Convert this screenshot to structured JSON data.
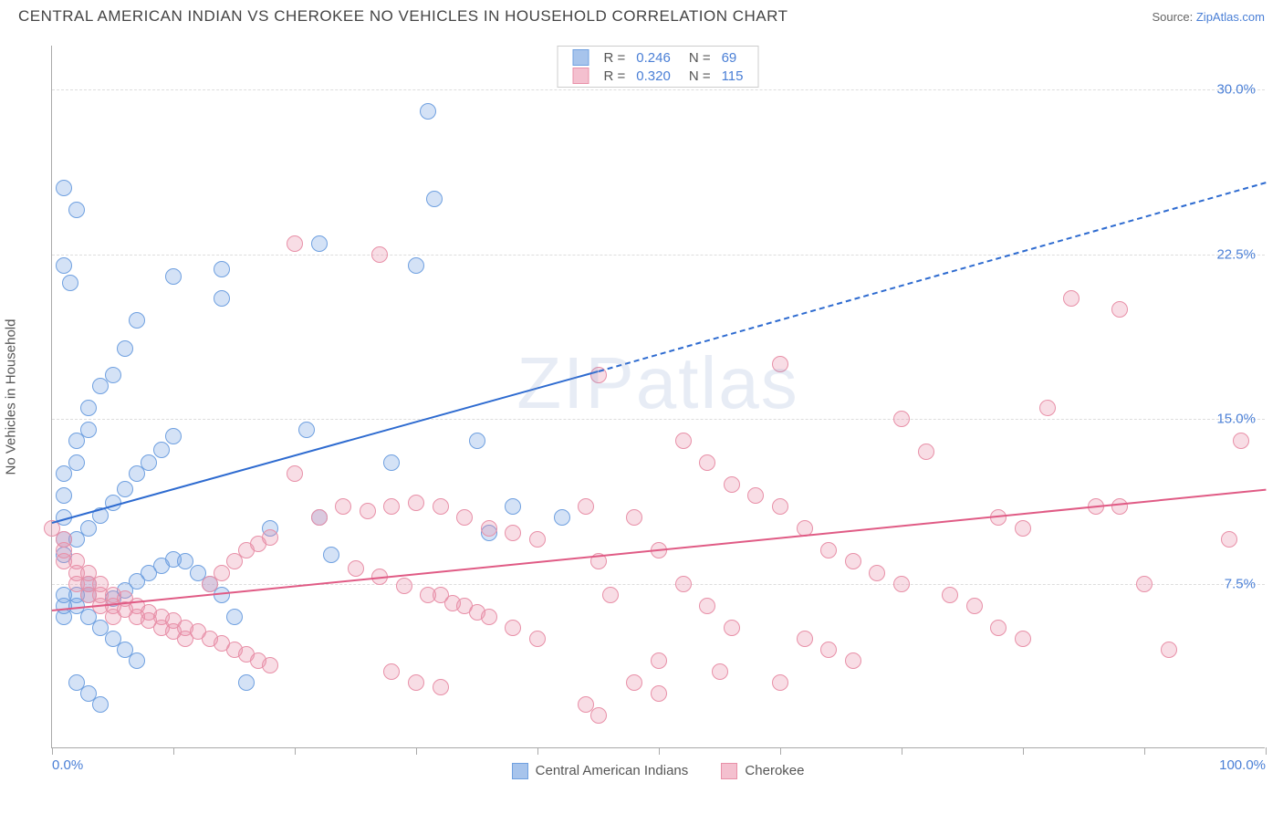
{
  "header": {
    "title": "CENTRAL AMERICAN INDIAN VS CHEROKEE NO VEHICLES IN HOUSEHOLD CORRELATION CHART",
    "source_prefix": "Source: ",
    "source_link": "ZipAtlas.com"
  },
  "chart": {
    "type": "scatter",
    "watermark": "ZIPatlas",
    "y_axis_title": "No Vehicles in Household",
    "background_color": "#ffffff",
    "grid_color": "#dddddd",
    "axis_color": "#aaaaaa",
    "xlim": [
      0,
      100
    ],
    "ylim": [
      0,
      32
    ],
    "x_ticks": [
      0,
      10,
      20,
      30,
      40,
      50,
      60,
      70,
      80,
      90,
      100
    ],
    "x_tick_labels_shown": {
      "0": "0.0%",
      "100": "100.0%"
    },
    "y_grid": [
      {
        "v": 7.5,
        "label": "7.5%"
      },
      {
        "v": 15.0,
        "label": "15.0%"
      },
      {
        "v": 22.5,
        "label": "22.5%"
      },
      {
        "v": 30.0,
        "label": "30.0%"
      }
    ],
    "tick_label_color": "#4a7fd6",
    "title_fontsize": 17,
    "label_fontsize": 15,
    "marker_radius": 9,
    "marker_border_width": 1.5,
    "marker_fill_opacity": 0.28,
    "series": [
      {
        "key": "cai",
        "label": "Central American Indians",
        "color_stroke": "#6fa0e0",
        "color_fill": "rgba(111,160,224,0.30)",
        "legend_swatch_fill": "#a7c4ec",
        "legend_swatch_stroke": "#6fa0e0",
        "R": "0.246",
        "N": "69",
        "trend": {
          "x1": 0,
          "y1": 10.3,
          "x2_solid": 45,
          "y2_solid": 17.2,
          "x2_dash": 100,
          "y2_dash": 25.8,
          "color": "#2e6bd0",
          "width": 2,
          "dash": "5,5"
        },
        "points": [
          [
            1,
            25.5
          ],
          [
            2,
            24.5
          ],
          [
            1,
            22.0
          ],
          [
            1.5,
            21.2
          ],
          [
            31,
            29.0
          ],
          [
            31.5,
            25.0
          ],
          [
            30,
            22.0
          ],
          [
            22,
            23.0
          ],
          [
            14,
            21.8
          ],
          [
            14,
            20.5
          ],
          [
            10,
            21.5
          ],
          [
            7,
            19.5
          ],
          [
            6,
            18.2
          ],
          [
            5,
            17.0
          ],
          [
            4,
            16.5
          ],
          [
            3,
            15.5
          ],
          [
            3,
            14.5
          ],
          [
            2,
            14.0
          ],
          [
            2,
            13.0
          ],
          [
            1,
            12.5
          ],
          [
            1,
            11.5
          ],
          [
            1,
            10.5
          ],
          [
            1,
            9.5
          ],
          [
            1,
            8.8
          ],
          [
            2,
            9.5
          ],
          [
            3,
            10.0
          ],
          [
            4,
            10.6
          ],
          [
            5,
            11.2
          ],
          [
            6,
            11.8
          ],
          [
            7,
            12.5
          ],
          [
            8,
            13.0
          ],
          [
            9,
            13.6
          ],
          [
            10,
            14.2
          ],
          [
            11,
            8.5
          ],
          [
            12,
            8.0
          ],
          [
            13,
            7.5
          ],
          [
            14,
            7.0
          ],
          [
            3,
            6.0
          ],
          [
            4,
            5.5
          ],
          [
            5,
            5.0
          ],
          [
            6,
            4.5
          ],
          [
            7,
            4.0
          ],
          [
            2,
            3.0
          ],
          [
            3,
            2.5
          ],
          [
            4,
            2.0
          ],
          [
            5,
            6.8
          ],
          [
            6,
            7.2
          ],
          [
            7,
            7.6
          ],
          [
            8,
            8.0
          ],
          [
            9,
            8.3
          ],
          [
            10,
            8.6
          ],
          [
            1,
            7.0
          ],
          [
            1,
            6.5
          ],
          [
            1,
            6.0
          ],
          [
            2,
            7.0
          ],
          [
            2,
            6.5
          ],
          [
            3,
            7.5
          ],
          [
            3,
            7.0
          ],
          [
            21,
            14.5
          ],
          [
            22,
            10.5
          ],
          [
            28,
            13.0
          ],
          [
            35,
            14.0
          ],
          [
            38,
            11.0
          ],
          [
            36,
            9.8
          ],
          [
            42,
            10.5
          ],
          [
            23,
            8.8
          ],
          [
            15,
            6.0
          ],
          [
            16,
            3.0
          ],
          [
            18,
            10.0
          ]
        ]
      },
      {
        "key": "cherokee",
        "label": "Cherokee",
        "color_stroke": "#e890a8",
        "color_fill": "rgba(232,144,168,0.30)",
        "legend_swatch_fill": "#f4c0cf",
        "legend_swatch_stroke": "#e890a8",
        "R": "0.320",
        "N": "115",
        "trend": {
          "x1": 0,
          "y1": 6.3,
          "x2_solid": 100,
          "y2_solid": 11.8,
          "color": "#e05b85",
          "width": 2
        },
        "points": [
          [
            0,
            10.0
          ],
          [
            1,
            9.5
          ],
          [
            1,
            9.0
          ],
          [
            1,
            8.5
          ],
          [
            2,
            8.5
          ],
          [
            2,
            8.0
          ],
          [
            2,
            7.5
          ],
          [
            3,
            8.0
          ],
          [
            3,
            7.5
          ],
          [
            3,
            7.0
          ],
          [
            4,
            7.5
          ],
          [
            4,
            7.0
          ],
          [
            4,
            6.5
          ],
          [
            5,
            7.0
          ],
          [
            5,
            6.5
          ],
          [
            5,
            6.0
          ],
          [
            6,
            6.8
          ],
          [
            6,
            6.3
          ],
          [
            7,
            6.5
          ],
          [
            7,
            6.0
          ],
          [
            8,
            6.2
          ],
          [
            8,
            5.8
          ],
          [
            9,
            6.0
          ],
          [
            9,
            5.5
          ],
          [
            10,
            5.8
          ],
          [
            10,
            5.3
          ],
          [
            11,
            5.5
          ],
          [
            11,
            5.0
          ],
          [
            12,
            5.3
          ],
          [
            13,
            5.0
          ],
          [
            14,
            4.8
          ],
          [
            15,
            4.5
          ],
          [
            16,
            4.3
          ],
          [
            17,
            4.0
          ],
          [
            18,
            3.8
          ],
          [
            13,
            7.5
          ],
          [
            14,
            8.0
          ],
          [
            15,
            8.5
          ],
          [
            16,
            9.0
          ],
          [
            17,
            9.3
          ],
          [
            18,
            9.6
          ],
          [
            20,
            23.0
          ],
          [
            27,
            22.5
          ],
          [
            20,
            12.5
          ],
          [
            22,
            10.5
          ],
          [
            24,
            11.0
          ],
          [
            26,
            10.8
          ],
          [
            28,
            11.0
          ],
          [
            30,
            11.2
          ],
          [
            32,
            11.0
          ],
          [
            34,
            10.5
          ],
          [
            36,
            10.0
          ],
          [
            38,
            9.8
          ],
          [
            40,
            9.5
          ],
          [
            32,
            7.0
          ],
          [
            34,
            6.5
          ],
          [
            36,
            6.0
          ],
          [
            38,
            5.5
          ],
          [
            40,
            5.0
          ],
          [
            28,
            3.5
          ],
          [
            30,
            3.0
          ],
          [
            32,
            2.8
          ],
          [
            25,
            8.2
          ],
          [
            27,
            7.8
          ],
          [
            29,
            7.4
          ],
          [
            31,
            7.0
          ],
          [
            33,
            6.6
          ],
          [
            35,
            6.2
          ],
          [
            44,
            11.0
          ],
          [
            45,
            8.5
          ],
          [
            46,
            7.0
          ],
          [
            48,
            10.5
          ],
          [
            50,
            9.0
          ],
          [
            52,
            7.5
          ],
          [
            54,
            6.5
          ],
          [
            56,
            5.5
          ],
          [
            48,
            3.0
          ],
          [
            50,
            2.5
          ],
          [
            52,
            14.0
          ],
          [
            54,
            13.0
          ],
          [
            56,
            12.0
          ],
          [
            58,
            11.5
          ],
          [
            60,
            11.0
          ],
          [
            62,
            10.0
          ],
          [
            64,
            9.0
          ],
          [
            66,
            8.5
          ],
          [
            68,
            8.0
          ],
          [
            70,
            7.5
          ],
          [
            62,
            5.0
          ],
          [
            64,
            4.5
          ],
          [
            66,
            4.0
          ],
          [
            45,
            17.0
          ],
          [
            60,
            17.5
          ],
          [
            70,
            15.0
          ],
          [
            72,
            13.5
          ],
          [
            74,
            7.0
          ],
          [
            76,
            6.5
          ],
          [
            78,
            5.5
          ],
          [
            80,
            5.0
          ],
          [
            84,
            20.5
          ],
          [
            88,
            20.0
          ],
          [
            86,
            11.0
          ],
          [
            88,
            11.0
          ],
          [
            90,
            7.5
          ],
          [
            92,
            4.5
          ],
          [
            82,
            15.5
          ],
          [
            98,
            14.0
          ],
          [
            97,
            9.5
          ],
          [
            78,
            10.5
          ],
          [
            80,
            10.0
          ],
          [
            50,
            4.0
          ],
          [
            55,
            3.5
          ],
          [
            60,
            3.0
          ],
          [
            44,
            2.0
          ],
          [
            45,
            1.5
          ]
        ]
      }
    ]
  }
}
